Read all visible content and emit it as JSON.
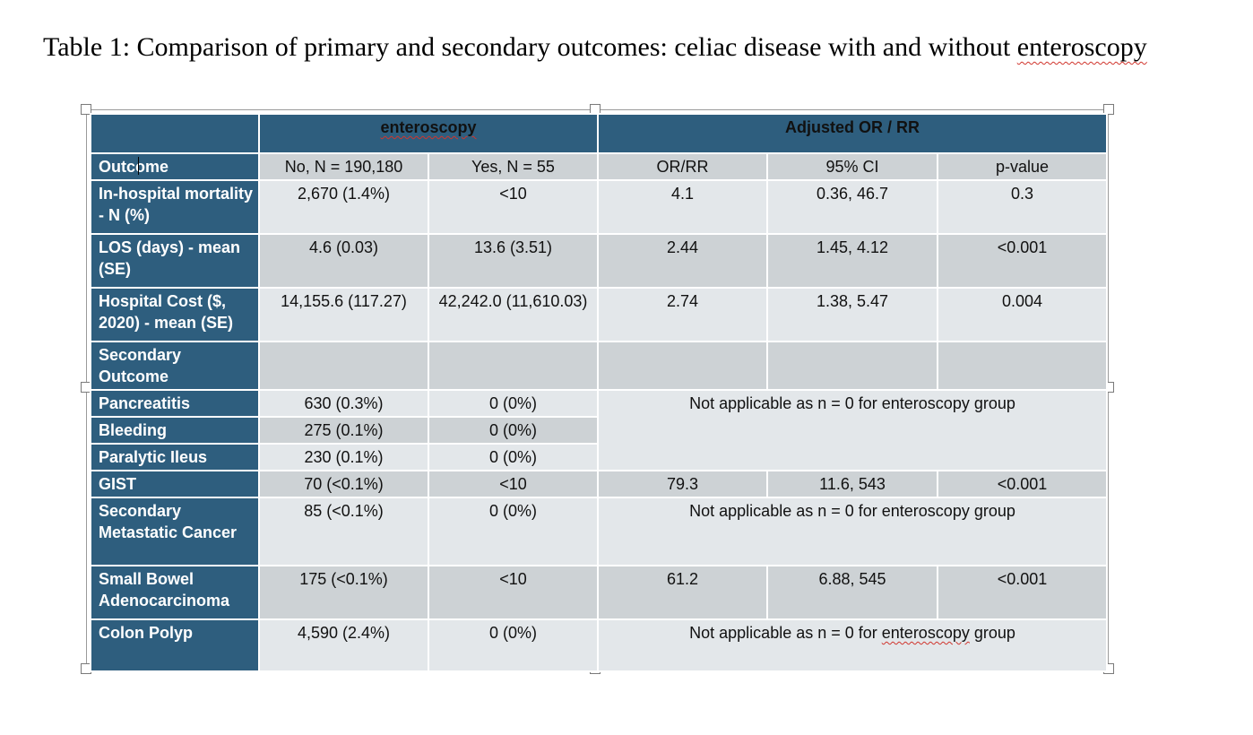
{
  "title": {
    "prefix": "Table 1: Comparison of primary and secondary outcomes: celiac disease with and without ",
    "flagged_word": "enteroscopy"
  },
  "table": {
    "group_headers": [
      "enteroscopy",
      "Adjusted OR / RR"
    ],
    "column_headers": {
      "outcome": "Outcome",
      "no": "No, N = 190,180",
      "yes": "Yes, N = 55",
      "or": "OR/RR",
      "ci": "95% CI",
      "p": "p-value"
    },
    "primary_rows": [
      {
        "label": "In-hospital mortality - N (%)",
        "no": "2,670 (1.4%)",
        "yes": "<10",
        "or": "4.1",
        "ci": "0.36, 46.7",
        "p": "0.3"
      },
      {
        "label": "LOS (days) - mean (SE)",
        "no": "4.6 (0.03)",
        "yes": "13.6 (3.51)",
        "or": "2.44",
        "ci": "1.45, 4.12",
        "p": "<0.001"
      },
      {
        "label": "Hospital Cost ($, 2020) - mean (SE)",
        "no": "14,155.6 (117.27)",
        "yes": "42,242.0 (11,610.03)",
        "or": "2.74",
        "ci": "1.38, 5.47",
        "p": "0.004"
      }
    ],
    "secondary_label": "Secondary Outcome",
    "secondary_rows": [
      {
        "label": "Pancreatitis",
        "no": "630 (0.3%)",
        "yes": "0 (0%)"
      },
      {
        "label": "Bleeding",
        "no": "275 (0.1%)",
        "yes": "0 (0%)"
      },
      {
        "label": "Paralytic Ileus",
        "no": "230 (0.1%)",
        "yes": "0 (0%)"
      },
      {
        "label": "GIST",
        "no": "70 (<0.1%)",
        "yes": "<10",
        "or": "79.3",
        "ci": "11.6, 543",
        "p": "<0.001"
      },
      {
        "label": "Secondary Metastatic Cancer",
        "no": "85 (<0.1%)",
        "yes": "0 (0%)"
      },
      {
        "label": "Small Bowel Adenocarcinoma",
        "no": "175 (<0.1%)",
        "yes": "<10",
        "or": "61.2",
        "ci": "6.88, 545",
        "p": "<0.001"
      },
      {
        "label": "Colon Polyp",
        "no": "4,590 (2.4%)",
        "yes": "0 (0%)"
      }
    ],
    "not_applicable_text": "Not applicable as n = 0 for enteroscopy group",
    "not_applicable_prefix": "Not applicable as n = 0 for ",
    "not_applicable_flagged": "enteroscopy",
    "not_applicable_suffix": " group"
  },
  "colors": {
    "header_blue": "#2e5e7e",
    "cell_dark": "#cdd2d5",
    "cell_light": "#e3e7ea",
    "spellcheck_red": "#d0342c"
  }
}
